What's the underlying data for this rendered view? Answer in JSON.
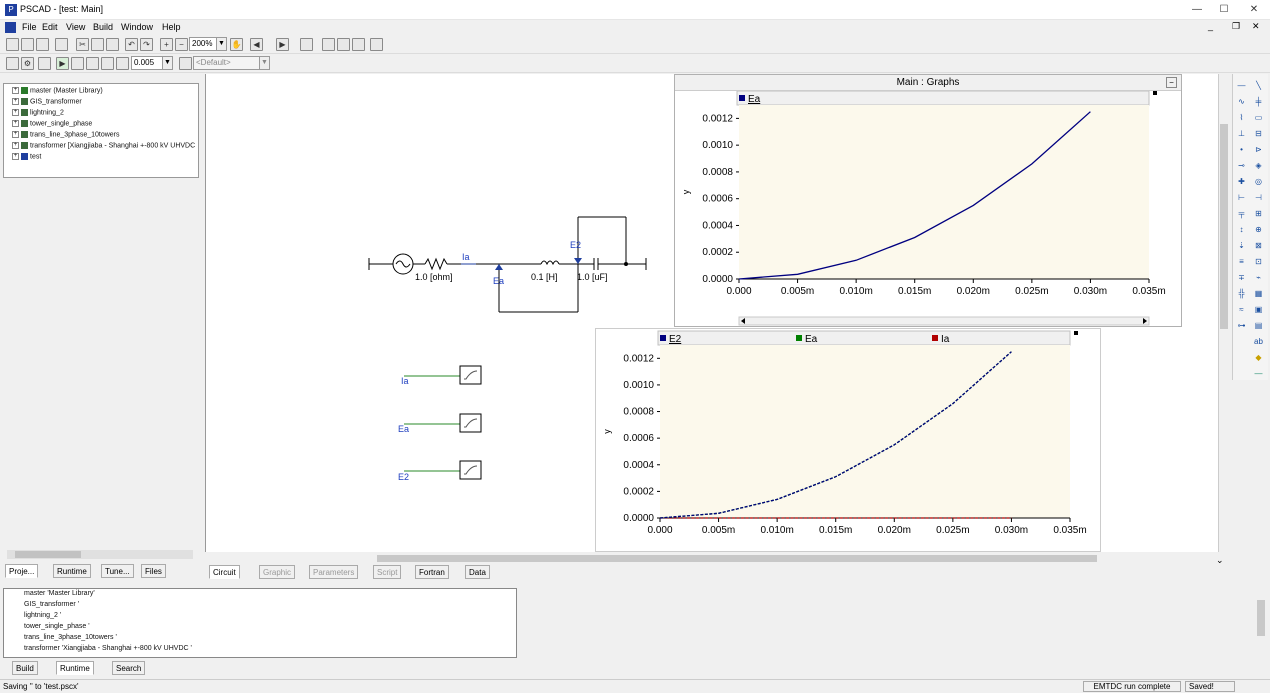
{
  "window": {
    "title": "PSCAD - [test: Main]",
    "minimize": "—",
    "maximize": "☐",
    "close": "✕"
  },
  "menu": [
    "File",
    "Edit",
    "View",
    "Build",
    "Window",
    "Help"
  ],
  "toolbar": {
    "zoom_value": "200%",
    "timestep_value": "0.005",
    "layer_value": "<Default>"
  },
  "project_tree": [
    "master (Master Library)",
    "GIS_transformer",
    "lightning_2",
    "tower_single_phase",
    "trans_line_3phase_10towers",
    "transformer [Xiangjiaba - Shanghai +-800 kV UHVDC",
    "test"
  ],
  "left_tabs": [
    "Proje...",
    "Runtime",
    "Tune...",
    "Files"
  ],
  "canvas_tabs": [
    "Circuit",
    "Graphic",
    "Parameters",
    "Script",
    "Fortran",
    "Data"
  ],
  "circuit": {
    "r_label": "1.0 [ohm]",
    "l_label": "0.1 [H]",
    "c_label": "1.0 [uF]",
    "ia_label": "Ia",
    "ea_label": "Ea",
    "e2_label": "E2",
    "meters": [
      "Ia",
      "Ea",
      "E2"
    ]
  },
  "graph_frame_title": "Main : Graphs",
  "colors": {
    "navy": "#000080",
    "green": "#008000",
    "red": "#b00000",
    "plot_bg": "#fcf9ec"
  },
  "chart_data": [
    {
      "type": "line",
      "title": "",
      "xlabel": "",
      "ylabel": "y",
      "xlim": [
        0,
        0.035
      ],
      "ylim": [
        0,
        0.0013
      ],
      "x_ticks": [
        "0.000",
        "0.005m",
        "0.010m",
        "0.015m",
        "0.020m",
        "0.025m",
        "0.030m",
        "0.035m"
      ],
      "y_ticks": [
        "0.0000",
        "0.0002",
        "0.0004",
        "0.0006",
        "0.0008",
        "0.0010",
        "0.0012"
      ],
      "series": [
        {
          "name": "Ea",
          "color": "#000080",
          "x": [
            0,
            0.005,
            0.01,
            0.015,
            0.02,
            0.025,
            0.03
          ],
          "y": [
            0,
            3.5e-05,
            0.00014,
            0.00031,
            0.00055,
            0.00086,
            0.00125
          ]
        }
      ]
    },
    {
      "type": "line",
      "title": "",
      "xlabel": "",
      "ylabel": "y",
      "xlim": [
        0,
        0.035
      ],
      "ylim": [
        0,
        0.0013
      ],
      "x_ticks": [
        "0.000",
        "0.005m",
        "0.010m",
        "0.015m",
        "0.020m",
        "0.025m",
        "0.030m",
        "0.035m"
      ],
      "y_ticks": [
        "0.0000",
        "0.0002",
        "0.0004",
        "0.0006",
        "0.0008",
        "0.0010",
        "0.0012"
      ],
      "series": [
        {
          "name": "E2",
          "color": "#000080",
          "x": [
            0,
            0.005,
            0.01,
            0.015,
            0.02,
            0.025,
            0.03
          ],
          "y": [
            0,
            3.5e-05,
            0.00014,
            0.00031,
            0.00055,
            0.00086,
            0.00125
          ]
        },
        {
          "name": "Ea",
          "color": "#008000",
          "x": [
            0,
            0.005,
            0.01,
            0.015,
            0.02,
            0.025,
            0.03
          ],
          "y": [
            0,
            3.5e-05,
            0.00014,
            0.00031,
            0.00055,
            0.00086,
            0.00125
          ]
        },
        {
          "name": "Ia",
          "color": "#b00000",
          "x": [
            0,
            0.005,
            0.01,
            0.015,
            0.02,
            0.025,
            0.03
          ],
          "y": [
            0,
            0,
            0,
            0,
            0,
            0,
            0
          ]
        }
      ]
    }
  ],
  "output_tree": [
    "master 'Master Library'",
    "GIS_transformer '",
    "lightning_2 '",
    "tower_single_phase '",
    "trans_line_3phase_10towers '",
    "transformer 'Xiangjiaba - Shanghai +-800 kV UHVDC '"
  ],
  "bottom_tabs": [
    "Build",
    "Runtime",
    "Search"
  ],
  "status": {
    "left": "Saving '' to 'test.pscx'",
    "run": "EMTDC run complete",
    "saved": "Saved!"
  }
}
